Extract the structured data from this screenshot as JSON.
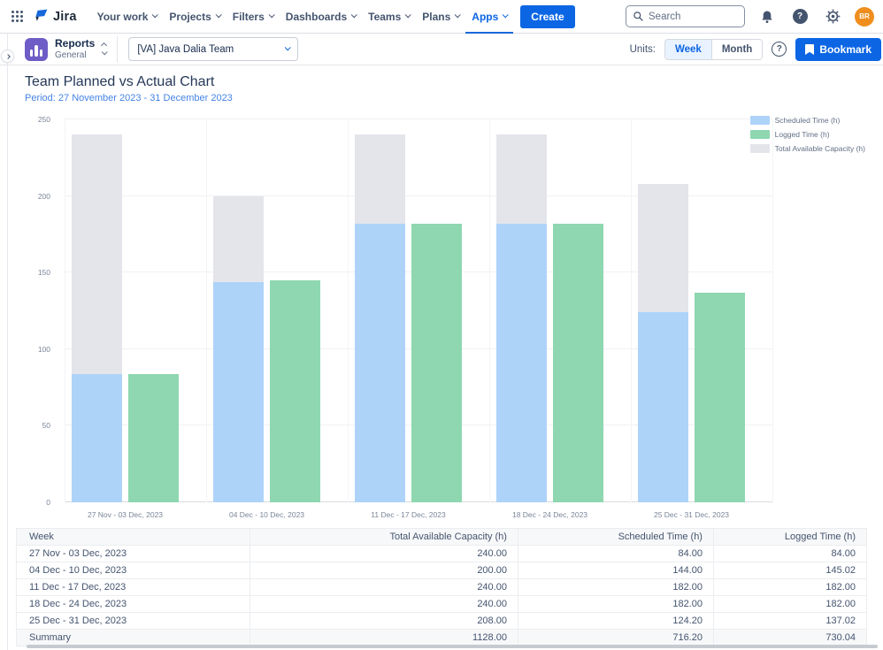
{
  "topnav": {
    "brand": "Jira",
    "items": [
      {
        "label": "Your work"
      },
      {
        "label": "Projects"
      },
      {
        "label": "Filters"
      },
      {
        "label": "Dashboards"
      },
      {
        "label": "Teams"
      },
      {
        "label": "Plans"
      },
      {
        "label": "Apps"
      }
    ],
    "active_item": "Apps",
    "create_label": "Create",
    "search_placeholder": "Search",
    "avatar_initials": "BR"
  },
  "toolbar": {
    "app_title": "Reports",
    "app_subtitle": "General",
    "team_selector_value": "[VA] Java Dalia Team",
    "units_label": "Units:",
    "unit_options": [
      "Week",
      "Month"
    ],
    "selected_unit": "Week",
    "bookmark_label": "Bookmark"
  },
  "page": {
    "title": "Team Planned vs Actual Chart",
    "period": "Period: 27 November 2023 - 31 December 2023"
  },
  "chart_data": {
    "type": "bar",
    "categories": [
      "27 Nov - 03 Dec, 2023",
      "04 Dec - 10 Dec, 2023",
      "11 Dec - 17 Dec, 2023",
      "18 Dec - 24 Dec, 2023",
      "25 Dec - 31 Dec, 2023"
    ],
    "series": [
      {
        "name": "Scheduled Time (h)",
        "color": "#ADD3F9",
        "values": [
          84,
          144,
          182,
          182,
          124.2
        ]
      },
      {
        "name": "Logged Time (h)",
        "color": "#8ED7B0",
        "values": [
          84,
          145.02,
          182,
          182,
          137.02
        ]
      },
      {
        "name": "Total Available Capacity (h)",
        "color": "#E4E5EA",
        "values": [
          240,
          200,
          240,
          240,
          208
        ]
      }
    ],
    "layout": "capacity bar drawn behind scheduled bar; logged bar beside them",
    "ylim": [
      0,
      250
    ],
    "ytick_step": 50,
    "grid": true,
    "legend_position": "top-right"
  },
  "table": {
    "columns": [
      "Week",
      "Total Available Capacity (h)",
      "Scheduled Time (h)",
      "Logged Time (h)"
    ],
    "rows": [
      [
        "27 Nov - 03 Dec, 2023",
        "240.00",
        "84.00",
        "84.00"
      ],
      [
        "04 Dec - 10 Dec, 2023",
        "200.00",
        "144.00",
        "145.02"
      ],
      [
        "11 Dec - 17 Dec, 2023",
        "240.00",
        "182.00",
        "182.00"
      ],
      [
        "18 Dec - 24 Dec, 2023",
        "240.00",
        "182.00",
        "182.00"
      ],
      [
        "25 Dec - 31 Dec, 2023",
        "208.00",
        "124.20",
        "137.02"
      ]
    ],
    "summary": [
      "Summary",
      "1128.00",
      "716.20",
      "730.04"
    ]
  },
  "colors": {
    "accent_blue": "#0C66E4",
    "brand_blue": "#1868DB",
    "period_text": "#4583E6",
    "avatar_orange": "#EF8E1E",
    "reports_icon_purple": "#6E5DC6"
  }
}
